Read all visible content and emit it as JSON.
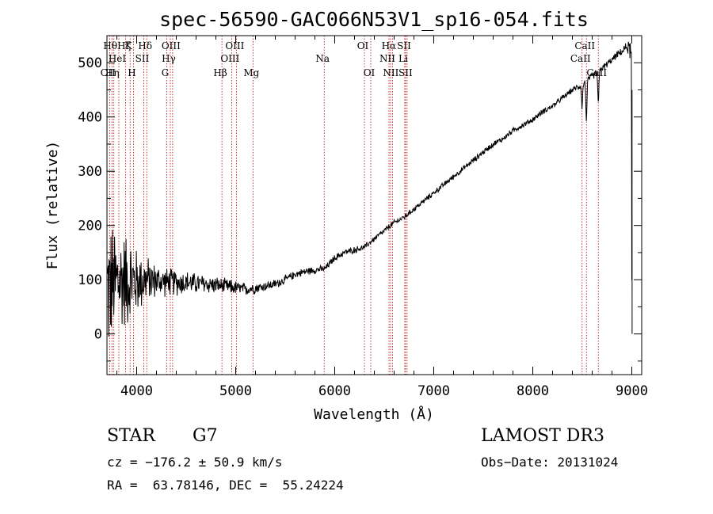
{
  "chart_data": {
    "type": "line",
    "title": "spec-56590-GAC066N53V1_sp16-054.fits",
    "xlabel": "Wavelength (Å)",
    "ylabel": "Flux (relative)",
    "xlim": [
      3700,
      9100
    ],
    "ylim": [
      -75,
      550
    ],
    "xticks": [
      4000,
      5000,
      6000,
      7000,
      8000,
      9000
    ],
    "yticks": [
      0,
      100,
      200,
      300,
      400,
      500
    ],
    "series": [
      {
        "name": "flux",
        "x": [
          3700,
          3750,
          3800,
          3850,
          3900,
          3950,
          4000,
          4100,
          4200,
          4300,
          4400,
          4500,
          4600,
          4700,
          4800,
          4900,
          5000,
          5100,
          5200,
          5300,
          5400,
          5500,
          5600,
          5700,
          5800,
          5900,
          6000,
          6100,
          6200,
          6300,
          6400,
          6500,
          6600,
          6700,
          6800,
          6900,
          7000,
          7100,
          7200,
          7300,
          7400,
          7500,
          7600,
          7700,
          7800,
          7900,
          8000,
          8100,
          8200,
          8300,
          8400,
          8500,
          8600,
          8700,
          8800,
          8850,
          8900,
          8950,
          8980,
          9000
        ],
        "y": [
          80,
          90,
          95,
          100,
          100,
          98,
          96,
          100,
          98,
          96,
          95,
          95,
          93,
          92,
          90,
          88,
          85,
          82,
          85,
          88,
          92,
          100,
          110,
          115,
          118,
          120,
          140,
          150,
          155,
          160,
          175,
          190,
          205,
          215,
          230,
          245,
          260,
          275,
          290,
          305,
          320,
          335,
          350,
          360,
          375,
          385,
          395,
          410,
          420,
          435,
          450,
          460,
          475,
          490,
          505,
          515,
          520,
          530,
          525,
          515
        ],
        "noise_amplitude": [
          150,
          130,
          120,
          110,
          100,
          90,
          70,
          50,
          35,
          30,
          28,
          25,
          22,
          20,
          18,
          16,
          15,
          13,
          12,
          10,
          10,
          9,
          8,
          8,
          8,
          7,
          7,
          7,
          7,
          6,
          6,
          6,
          6,
          6,
          6,
          6,
          6,
          6,
          6,
          6,
          6,
          6,
          6,
          6,
          6,
          6,
          6,
          6,
          6,
          6,
          6,
          8,
          8,
          7,
          7,
          7,
          8,
          10,
          20,
          60
        ]
      }
    ],
    "line_markers": [
      {
        "wave": 3727,
        "label": "OII",
        "row": 3
      },
      {
        "wave": 3750,
        "label": "Hθ",
        "row": 1
      },
      {
        "wave": 3770,
        "label": "Hη",
        "row": 3
      },
      {
        "wave": 3820,
        "label": "HeI",
        "row": 2
      },
      {
        "wave": 3889,
        "label": "Hζ",
        "row": 1
      },
      {
        "wave": 3934,
        "label": "K",
        "row": 1
      },
      {
        "wave": 3968,
        "label": "H",
        "row": 3
      },
      {
        "wave": 4072,
        "label": "SII",
        "row": 2
      },
      {
        "wave": 4102,
        "label": "Hδ",
        "row": 1
      },
      {
        "wave": 4304,
        "label": "G",
        "row": 3
      },
      {
        "wave": 4340,
        "label": "Hγ",
        "row": 2
      },
      {
        "wave": 4363,
        "label": "OIII",
        "row": 1
      },
      {
        "wave": 4861,
        "label": "Hβ",
        "row": 3
      },
      {
        "wave": 4959,
        "label": "OIII",
        "row": 2
      },
      {
        "wave": 5007,
        "label": "OIII",
        "row": 1
      },
      {
        "wave": 5175,
        "label": "Mg",
        "row": 3
      },
      {
        "wave": 5894,
        "label": "Na",
        "row": 2
      },
      {
        "wave": 6300,
        "label": "OI",
        "row": 1
      },
      {
        "wave": 6364,
        "label": "OI",
        "row": 3
      },
      {
        "wave": 6548,
        "label": "NII",
        "row": 2
      },
      {
        "wave": 6563,
        "label": "Hα",
        "row": 1
      },
      {
        "wave": 6583,
        "label": "NII",
        "row": 3
      },
      {
        "wave": 6707,
        "label": "Li",
        "row": 2
      },
      {
        "wave": 6716,
        "label": "SII",
        "row": 1
      },
      {
        "wave": 6731,
        "label": "SII",
        "row": 3
      },
      {
        "wave": 8498,
        "label": "CaII",
        "row": 2
      },
      {
        "wave": 8542,
        "label": "CaII",
        "row": 1
      },
      {
        "wave": 8662,
        "label": "CaII",
        "row": 3
      }
    ],
    "absorption_dips": [
      {
        "wave": 8498,
        "depth": 40
      },
      {
        "wave": 8542,
        "depth": 70
      },
      {
        "wave": 8662,
        "depth": 60
      }
    ]
  },
  "info": {
    "object_class": "STAR",
    "subclass": "G7",
    "survey": "LAMOST DR3",
    "cz": "cz = −176.2 ± 50.9 km/s",
    "obs_date": "Obs−Date: 20131024",
    "radec": "RA =  63.78146, DEC =  55.24224"
  },
  "colors": {
    "spectrum": "#000000",
    "line_marker": "#c00000",
    "axes": "#000000"
  }
}
